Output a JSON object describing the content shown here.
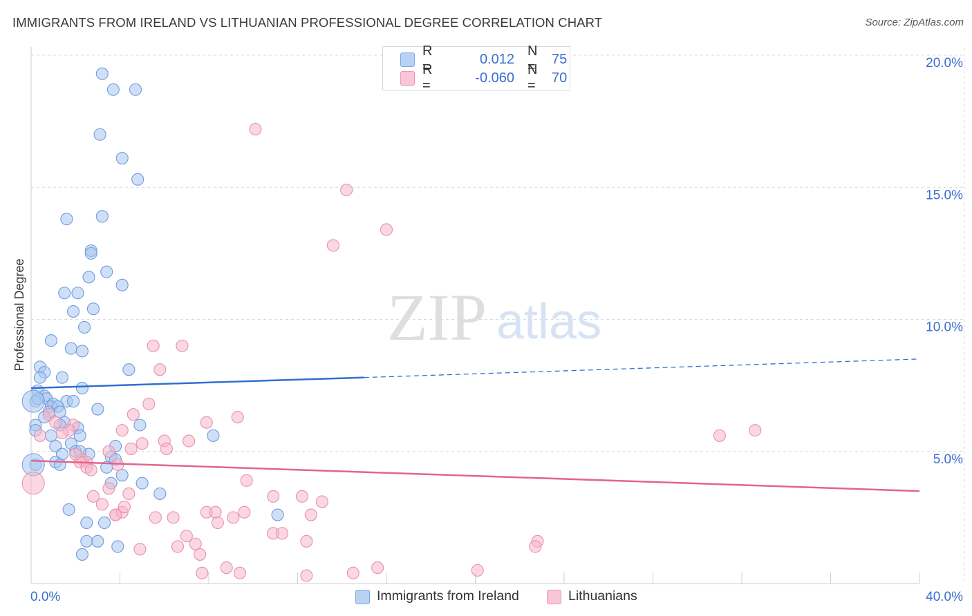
{
  "title": "IMMIGRANTS FROM IRELAND VS LITHUANIAN PROFESSIONAL DEGREE CORRELATION CHART",
  "source": "Source: ZipAtlas.com",
  "watermark": {
    "zip": "ZIP",
    "atlas": "atlas"
  },
  "colors": {
    "blue_fill": "#a8c6ef",
    "blue_stroke": "#6f9be0",
    "blue_line": "#2f6fd0",
    "pink_fill": "#f6b8cb",
    "pink_stroke": "#eb8fab",
    "pink_line": "#e2648f",
    "tick_label": "#3a6fcf",
    "grid": "#d9d9d9"
  },
  "legend": {
    "rows": [
      {
        "r_label": "R =",
        "r_value": "0.012",
        "n_label": "N =",
        "n_value": "75"
      },
      {
        "r_label": "R =",
        "r_value": "-0.060",
        "n_label": "N =",
        "n_value": "70"
      }
    ]
  },
  "bottom_legend": [
    "Immigrants from Ireland",
    "Lithuanians"
  ],
  "chart_data": {
    "type": "scatter",
    "title": "IMMIGRANTS FROM IRELAND VS LITHUANIAN PROFESSIONAL DEGREE CORRELATION CHART",
    "xlabel": "",
    "ylabel": "Professional Degree",
    "xlim": [
      0,
      40
    ],
    "ylim": [
      0,
      20
    ],
    "x_tick_labels": [
      "0.0%",
      "40.0%"
    ],
    "y_tick_values": [
      5,
      10,
      15,
      20
    ],
    "y_tick_labels": [
      "5.0%",
      "10.0%",
      "15.0%",
      "20.0%"
    ],
    "grid": "horizontal dashed",
    "series": [
      {
        "name": "Immigrants from Ireland",
        "r": 0.012,
        "n": 75,
        "trend": {
          "x0": 0,
          "y0": 7.4,
          "x1": 15,
          "y1": 7.8,
          "dashed_to_x": 40,
          "dashed_to_y": 8.5
        },
        "points": [
          [
            3.2,
            19.3
          ],
          [
            3.7,
            18.7
          ],
          [
            4.7,
            18.7
          ],
          [
            3.1,
            17.0
          ],
          [
            4.1,
            16.1
          ],
          [
            4.8,
            15.3
          ],
          [
            1.6,
            13.8
          ],
          [
            3.2,
            13.9
          ],
          [
            2.7,
            12.6
          ],
          [
            2.7,
            12.5
          ],
          [
            3.4,
            11.8
          ],
          [
            2.6,
            11.6
          ],
          [
            4.1,
            11.3
          ],
          [
            1.5,
            11.0
          ],
          [
            2.1,
            11.0
          ],
          [
            2.8,
            10.4
          ],
          [
            1.9,
            10.3
          ],
          [
            2.4,
            9.7
          ],
          [
            0.9,
            9.2
          ],
          [
            1.8,
            8.9
          ],
          [
            2.3,
            8.8
          ],
          [
            0.4,
            8.2
          ],
          [
            0.6,
            8.0
          ],
          [
            0.4,
            7.8
          ],
          [
            1.4,
            7.8
          ],
          [
            4.4,
            8.1
          ],
          [
            2.3,
            7.4
          ],
          [
            0.3,
            7.3
          ],
          [
            0.6,
            7.1
          ],
          [
            0.7,
            7.0
          ],
          [
            0.2,
            6.9
          ],
          [
            1.0,
            6.8
          ],
          [
            1.6,
            6.9
          ],
          [
            1.9,
            6.9
          ],
          [
            0.9,
            6.7
          ],
          [
            1.2,
            6.7
          ],
          [
            3.0,
            6.6
          ],
          [
            0.8,
            6.5
          ],
          [
            0.6,
            6.3
          ],
          [
            1.5,
            6.1
          ],
          [
            4.9,
            6.0
          ],
          [
            0.2,
            6.0
          ],
          [
            1.3,
            6.0
          ],
          [
            2.1,
            5.9
          ],
          [
            0.2,
            5.8
          ],
          [
            0.9,
            5.6
          ],
          [
            2.2,
            5.6
          ],
          [
            8.2,
            5.6
          ],
          [
            1.8,
            5.3
          ],
          [
            1.1,
            5.2
          ],
          [
            3.8,
            5.2
          ],
          [
            2.0,
            5.0
          ],
          [
            1.4,
            4.9
          ],
          [
            2.6,
            4.9
          ],
          [
            3.6,
            4.8
          ],
          [
            3.8,
            4.7
          ],
          [
            1.1,
            4.6
          ],
          [
            1.3,
            4.5
          ],
          [
            0.2,
            4.5
          ],
          [
            3.4,
            4.4
          ],
          [
            4.1,
            4.1
          ],
          [
            3.6,
            3.8
          ],
          [
            5.0,
            3.8
          ],
          [
            5.8,
            3.4
          ],
          [
            11.1,
            2.6
          ],
          [
            1.7,
            2.8
          ],
          [
            2.5,
            2.3
          ],
          [
            3.3,
            2.3
          ],
          [
            2.5,
            1.6
          ],
          [
            3.0,
            1.6
          ],
          [
            3.9,
            1.4
          ],
          [
            2.3,
            1.1
          ],
          [
            1.3,
            6.5
          ],
          [
            2.2,
            5.0
          ],
          [
            0.3,
            7.0
          ]
        ],
        "large_points": [
          [
            0.1,
            4.5
          ],
          [
            0.1,
            6.9
          ]
        ]
      },
      {
        "name": "Lithuanians",
        "r": -0.06,
        "n": 70,
        "trend": {
          "x0": 0,
          "y0": 4.65,
          "x1": 40,
          "y1": 3.5
        },
        "points": [
          [
            10.1,
            17.2
          ],
          [
            14.2,
            14.9
          ],
          [
            16.0,
            13.4
          ],
          [
            13.6,
            12.8
          ],
          [
            5.5,
            9.0
          ],
          [
            6.8,
            9.0
          ],
          [
            5.8,
            8.1
          ],
          [
            5.3,
            6.8
          ],
          [
            4.6,
            6.4
          ],
          [
            9.3,
            6.3
          ],
          [
            7.9,
            6.1
          ],
          [
            1.9,
            6.0
          ],
          [
            0.4,
            5.6
          ],
          [
            0.8,
            6.4
          ],
          [
            1.7,
            5.8
          ],
          [
            1.4,
            5.7
          ],
          [
            4.1,
            5.8
          ],
          [
            6.0,
            5.4
          ],
          [
            7.1,
            5.4
          ],
          [
            5.0,
            5.3
          ],
          [
            6.1,
            5.1
          ],
          [
            4.5,
            5.1
          ],
          [
            3.5,
            5.0
          ],
          [
            2.3,
            4.7
          ],
          [
            2.5,
            4.6
          ],
          [
            2.2,
            4.6
          ],
          [
            2.5,
            4.4
          ],
          [
            3.9,
            4.5
          ],
          [
            2.7,
            4.3
          ],
          [
            9.7,
            3.9
          ],
          [
            3.5,
            3.6
          ],
          [
            2.8,
            3.3
          ],
          [
            10.9,
            3.3
          ],
          [
            12.2,
            3.3
          ],
          [
            13.1,
            3.1
          ],
          [
            3.2,
            3.0
          ],
          [
            3.8,
            2.6
          ],
          [
            4.1,
            2.7
          ],
          [
            4.2,
            2.9
          ],
          [
            7.9,
            2.7
          ],
          [
            8.3,
            2.7
          ],
          [
            9.6,
            2.7
          ],
          [
            12.6,
            2.6
          ],
          [
            5.6,
            2.5
          ],
          [
            6.4,
            2.5
          ],
          [
            9.1,
            2.5
          ],
          [
            8.4,
            2.3
          ],
          [
            7.0,
            1.8
          ],
          [
            10.9,
            1.9
          ],
          [
            11.3,
            1.9
          ],
          [
            7.4,
            1.5
          ],
          [
            12.4,
            1.6
          ],
          [
            22.8,
            1.6
          ],
          [
            22.7,
            1.4
          ],
          [
            4.9,
            1.3
          ],
          [
            6.6,
            1.4
          ],
          [
            7.6,
            1.1
          ],
          [
            7.7,
            0.4
          ],
          [
            8.8,
            0.6
          ],
          [
            9.4,
            0.4
          ],
          [
            12.4,
            0.3
          ],
          [
            14.5,
            0.4
          ],
          [
            15.6,
            0.6
          ],
          [
            20.1,
            0.5
          ],
          [
            31.0,
            5.6
          ],
          [
            32.6,
            5.8
          ],
          [
            3.8,
            2.6
          ],
          [
            4.4,
            3.4
          ],
          [
            1.1,
            6.1
          ],
          [
            2.0,
            4.9
          ]
        ],
        "large_points": [
          [
            0.1,
            3.8
          ]
        ]
      }
    ]
  }
}
